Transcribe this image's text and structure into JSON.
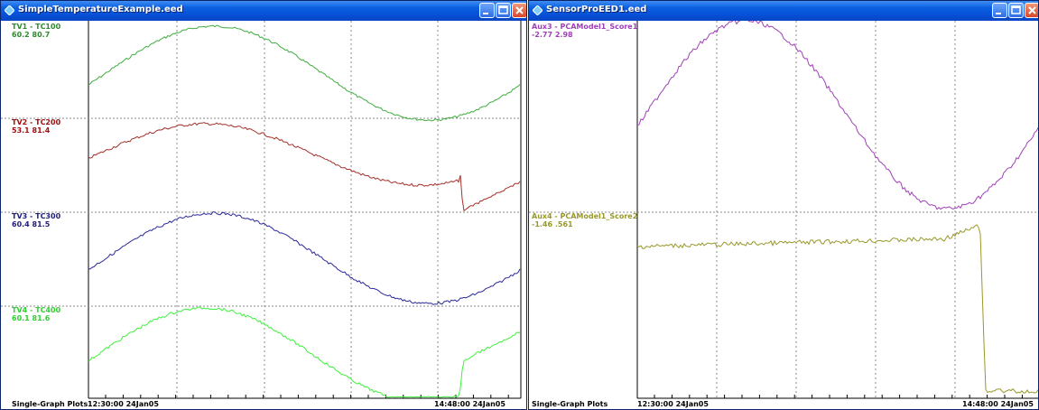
{
  "colors": {
    "trace1": "#3fae3f",
    "trace2": "#a4302a",
    "trace3": "#2a2a9a",
    "trace4": "#3ef03e",
    "aux3": "#a040b8",
    "aux4": "#98982a",
    "label_tv1": "#2e8b2e",
    "label_tv2": "#a01010",
    "label_tv3": "#20207a",
    "label_tv4": "#30d030"
  },
  "windows": [
    {
      "title": "SimpleTemperatureExample.eed",
      "footer_left": "Single-Graph Plots",
      "time_start": "12:30:00 24Jan05",
      "time_end": "14:48:00 24Jan05",
      "traces": [
        {
          "name": "TV1 - TC100",
          "range": "60.2  80.7"
        },
        {
          "name": "TV2 - TC200",
          "range": "53.1  81.4"
        },
        {
          "name": "TV3 - TC300",
          "range": "60.4  81.5"
        },
        {
          "name": "TV4 - TC400",
          "range": "60.1  81.6"
        }
      ]
    },
    {
      "title": "SensorProEED1.eed",
      "footer_left": "Single-Graph Plots",
      "time_start": "12:30:00 24Jan05",
      "time_end": "14:48:00 24Jan05",
      "traces": [
        {
          "name": "Aux3 - PCAModel1_Score1",
          "range": "-2.77  2.98"
        },
        {
          "name": "Aux4 - PCAModel1_Score2",
          "range": "-1.46  .561"
        }
      ]
    }
  ]
}
